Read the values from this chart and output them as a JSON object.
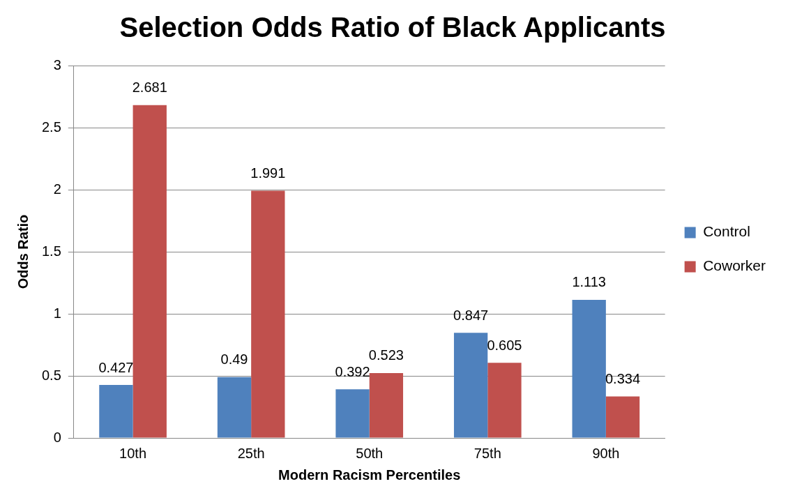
{
  "chart_data": {
    "type": "bar",
    "title": "Selection Odds Ratio of Black Applicants",
    "xlabel": "Modern Racism Percentiles",
    "ylabel": "Odds Ratio",
    "categories": [
      "10th",
      "25th",
      "50th",
      "75th",
      "90th"
    ],
    "series": [
      {
        "name": "Control",
        "color": "#4f81bd",
        "values": [
          0.427,
          0.49,
          0.392,
          0.847,
          1.113
        ]
      },
      {
        "name": "Coworker",
        "color": "#c0504d",
        "values": [
          2.681,
          1.991,
          0.523,
          0.605,
          0.334
        ]
      }
    ],
    "ylim": [
      0,
      3
    ],
    "yticks": [
      0,
      0.5,
      1,
      1.5,
      2,
      2.5,
      3
    ],
    "grid": "y",
    "legend": "right",
    "data_labels": true
  }
}
